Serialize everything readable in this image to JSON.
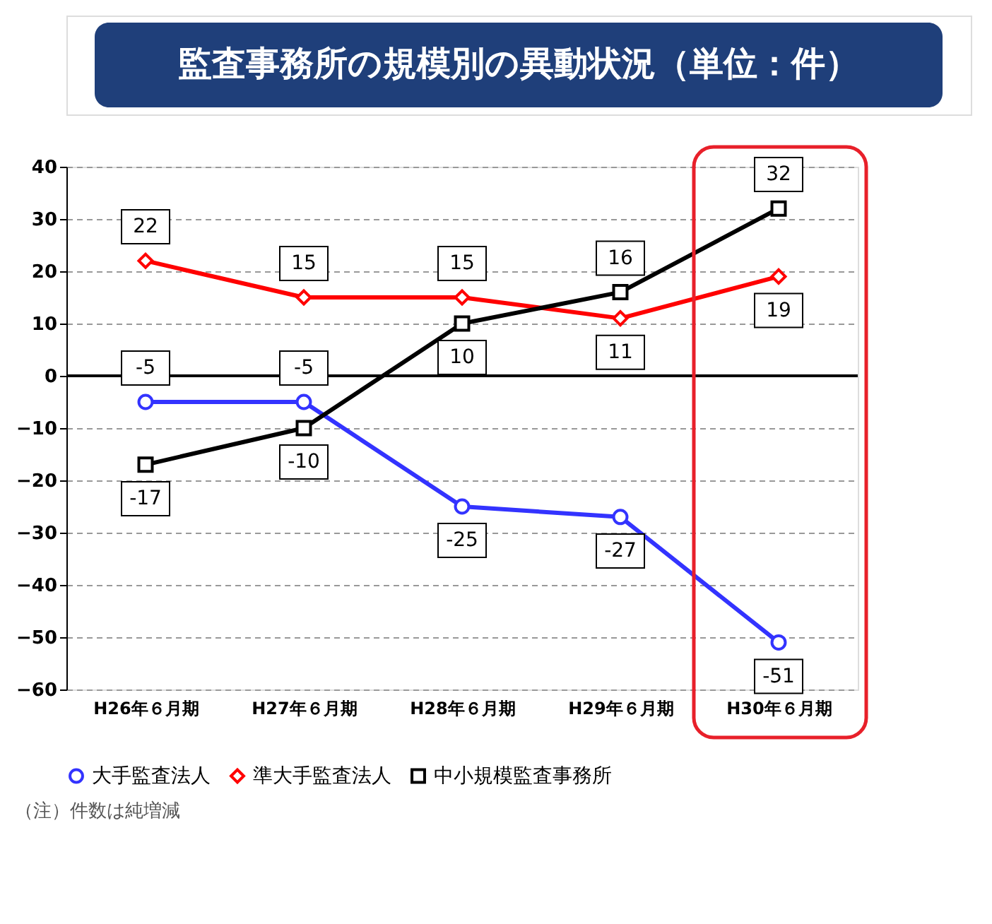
{
  "chart_data": {
    "type": "line",
    "title": "監査事務所の規模別の異動状況（単位：件）",
    "categories": [
      "H26年６月期",
      "H27年６月期",
      "H28年６月期",
      "H29年６月期",
      "H30年６月期"
    ],
    "series": [
      {
        "name": "大手監査法人",
        "color": "#3333ff",
        "marker": "circle",
        "values": [
          -5,
          -5,
          -25,
          -27,
          -51
        ]
      },
      {
        "name": "準大手監査法人",
        "color": "#ff0000",
        "marker": "diamond",
        "values": [
          22,
          15,
          15,
          11,
          19
        ]
      },
      {
        "name": "中小規模監査事務所",
        "color": "#000000",
        "marker": "square",
        "values": [
          -17,
          -10,
          10,
          16,
          32
        ]
      }
    ],
    "ylim": [
      -60,
      40
    ],
    "yticks": [
      -60,
      -50,
      -40,
      -30,
      -20,
      -10,
      0,
      10,
      20,
      30,
      40
    ],
    "grid": "y",
    "legend": "bottom",
    "data_labels": true,
    "line_style": "solid",
    "ref_lines": [
      {
        "axis": "y",
        "value": 0,
        "color": "#000000"
      }
    ],
    "annotations": [
      "（注）件数は純増減"
    ]
  }
}
